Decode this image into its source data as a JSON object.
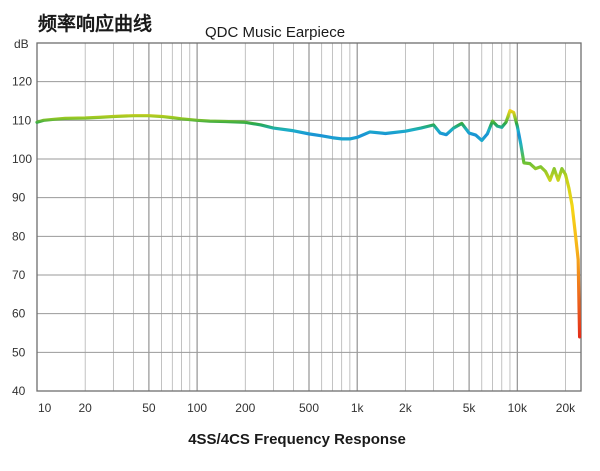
{
  "chart_data": {
    "type": "line",
    "title_cn": "频率响应曲线",
    "title": "QDC Music Earpiece",
    "xlabel": "4SS/4CS Frequency Response",
    "ylabel": "dB",
    "xscale": "log",
    "xlim": [
      10,
      25000
    ],
    "ylim": [
      40,
      130
    ],
    "grid": true,
    "x_tick_labels": [
      {
        "v": 10,
        "label": "10"
      },
      {
        "v": 20,
        "label": "20"
      },
      {
        "v": 50,
        "label": "50"
      },
      {
        "v": 100,
        "label": "100"
      },
      {
        "v": 200,
        "label": "200"
      },
      {
        "v": 500,
        "label": "500"
      },
      {
        "v": 1000,
        "label": "1k"
      },
      {
        "v": 2000,
        "label": "2k"
      },
      {
        "v": 5000,
        "label": "5k"
      },
      {
        "v": 10000,
        "label": "10k"
      },
      {
        "v": 20000,
        "label": "20k"
      }
    ],
    "y_tick_labels": [
      {
        "v": 120,
        "label": "120"
      },
      {
        "v": 110,
        "label": "110"
      },
      {
        "v": 100,
        "label": "100"
      },
      {
        "v": 90,
        "label": "90"
      },
      {
        "v": 80,
        "label": "80"
      },
      {
        "v": 70,
        "label": "70"
      },
      {
        "v": 60,
        "label": "60"
      },
      {
        "v": 50,
        "label": "50"
      },
      {
        "v": 40,
        "label": "40"
      }
    ],
    "series": [
      {
        "x": [
          10,
          11,
          13,
          15,
          20,
          25,
          30,
          40,
          50,
          60,
          70,
          80,
          100,
          120,
          150,
          200,
          250,
          300,
          400,
          500,
          600,
          700,
          800,
          900,
          1000,
          1200,
          1500,
          2000,
          2500,
          2800,
          3000,
          3300,
          3600,
          4000,
          4500,
          5000,
          5500,
          6000,
          6500,
          7000,
          7500,
          8000,
          8500,
          9000,
          9500,
          10000,
          10500,
          11000,
          12000,
          13000,
          14000,
          15000,
          16000,
          17000,
          18000,
          19000,
          20000,
          21000,
          22000,
          23000,
          24000,
          24500
        ],
        "y": [
          109.5,
          110,
          110.3,
          110.5,
          110.6,
          110.8,
          111,
          111.2,
          111.2,
          111,
          110.7,
          110.4,
          110,
          109.8,
          109.7,
          109.5,
          108.8,
          108,
          107.3,
          106.5,
          106,
          105.5,
          105.2,
          105.2,
          105.6,
          107,
          106.6,
          107.2,
          108,
          108.5,
          108.8,
          106.7,
          106.3,
          108,
          109.2,
          106.7,
          106.2,
          104.8,
          106.5,
          109.8,
          108.5,
          108.2,
          109.5,
          112.5,
          112,
          108.5,
          104,
          99,
          98.8,
          97.5,
          98,
          96.8,
          94.5,
          97.5,
          94.5,
          97.5,
          96,
          92.5,
          88,
          81,
          74,
          54
        ]
      }
    ]
  }
}
